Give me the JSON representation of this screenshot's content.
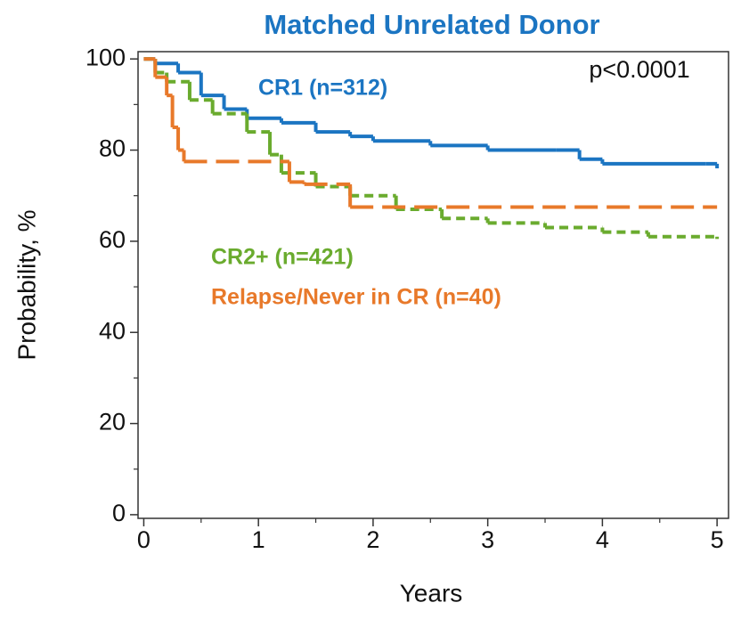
{
  "chart_data": {
    "type": "step",
    "title": "Matched Unrelated Donor",
    "annotation": "p<0.0001",
    "xlabel": "Years",
    "ylabel": "Probability, %",
    "xlim": [
      -0.05,
      5.1
    ],
    "ylim": [
      -0.8,
      101.6
    ],
    "xticks": [
      0,
      1,
      2,
      3,
      4,
      5
    ],
    "yticks": [
      0,
      20,
      40,
      60,
      80,
      100
    ],
    "xminor": [
      0.5,
      1.5,
      2.5,
      3.5,
      4.5
    ],
    "yminor": [
      10,
      30,
      50,
      70,
      90
    ],
    "series": [
      {
        "name": "CR1 (n=312)",
        "color": "#1b75c2",
        "dash": "none",
        "x": [
          0,
          0.1,
          0.3,
          0.5,
          0.7,
          0.9,
          1.2,
          1.5,
          1.8,
          2,
          2.5,
          3,
          3.6,
          3.8,
          4,
          4.9,
          5
        ],
        "values": [
          100,
          99,
          97,
          92,
          89,
          87,
          86,
          84,
          83,
          82,
          81,
          80,
          80,
          78,
          77,
          77,
          76
        ]
      },
      {
        "name": "CR2+ (n=421)",
        "color": "#6aab2e",
        "dash": "10 6",
        "x": [
          0,
          0.1,
          0.2,
          0.4,
          0.6,
          0.9,
          1.1,
          1.2,
          1.5,
          1.8,
          2.2,
          2.6,
          3,
          3.5,
          4,
          4.4,
          5
        ],
        "values": [
          100,
          97,
          95,
          91,
          88,
          84,
          79,
          75,
          72,
          70,
          67,
          65,
          64,
          63,
          62,
          61,
          60.5
        ]
      },
      {
        "name": "Relapse/Never in CR (n=40)",
        "color": "#e8792a",
        "dash": "26 10",
        "x": [
          0,
          0.1,
          0.2,
          0.25,
          0.3,
          0.35,
          1.27,
          1.4,
          1.8,
          5
        ],
        "values": [
          100,
          96,
          92,
          85,
          80,
          77.5,
          73,
          72.5,
          67.5,
          67.5
        ]
      }
    ]
  }
}
